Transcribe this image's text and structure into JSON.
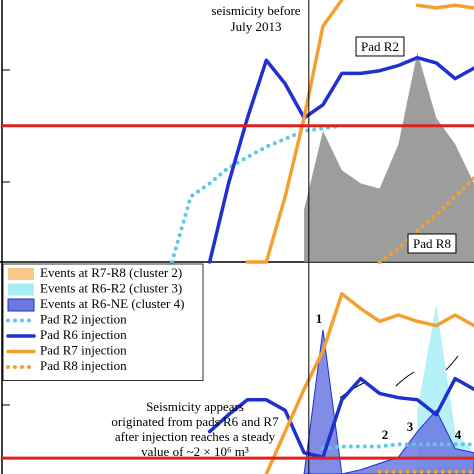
{
  "chart_data": [
    {
      "type": "line",
      "xlim": [
        0,
        100
      ],
      "ylim": [
        0,
        100
      ],
      "vline": 65,
      "hline": 52,
      "hline_color": "#e0201e",
      "annotations": [
        "seismicity before",
        "July 2013",
        "Pad R2",
        "Pad R8"
      ],
      "x": [
        36,
        40,
        44,
        48,
        52,
        56,
        60,
        64,
        68,
        72,
        76,
        80,
        84,
        88,
        92,
        96,
        100
      ],
      "series": [
        {
          "color": "#8c8c8c",
          "fill": true,
          "values": [
            null,
            null,
            null,
            null,
            null,
            null,
            null,
            20,
            50,
            35,
            30,
            28,
            45,
            80,
            55,
            45,
            30
          ]
        },
        {
          "color": "#5ec8e6",
          "style": "dotted",
          "values": [
            0,
            25,
            30,
            36,
            40,
            44,
            47,
            50,
            51,
            52,
            null,
            null,
            null,
            null,
            null,
            null,
            null
          ]
        },
        {
          "color": "#1f2fd0",
          "style": "solid",
          "values": [
            null,
            null,
            0,
            30,
            55,
            77,
            68,
            55,
            60,
            72,
            72,
            73,
            75,
            78,
            76,
            70,
            74
          ]
        },
        {
          "color": "#f4a030",
          "style": "solid",
          "values": [
            null,
            null,
            null,
            null,
            0,
            0,
            25,
            55,
            90,
            100,
            null,
            null,
            null,
            98,
            97,
            98,
            97
          ]
        },
        {
          "color": "#f4a030",
          "style": "dotted",
          "values": [
            null,
            null,
            null,
            null,
            null,
            null,
            null,
            null,
            null,
            null,
            null,
            0,
            5,
            12,
            18,
            25,
            32
          ]
        }
      ]
    },
    {
      "type": "line",
      "xlim": [
        0,
        100
      ],
      "ylim": [
        0,
        100
      ],
      "vline": 65,
      "hline": 7.5,
      "hline_color": "#e0201e",
      "annotations": [
        "Seismicity appears",
        "originated from pads R6 and R7",
        "after injection reaches a steady",
        "value of ~2 × 10⁶ m³",
        "1",
        "2",
        "3",
        "4"
      ],
      "x": [
        44,
        48,
        52,
        56,
        60,
        64,
        68,
        72,
        76,
        80,
        84,
        88,
        92,
        96,
        100
      ],
      "series": [
        {
          "name": "Events at R7-R8 (cluster 2)",
          "color": "#f8c888",
          "fill": true,
          "values": [
            null,
            null,
            null,
            null,
            null,
            null,
            null,
            null,
            null,
            null,
            null,
            2,
            5,
            3,
            2
          ]
        },
        {
          "name": "Events at R6-R2 (cluster 3)",
          "color": "#a8eef6",
          "fill": true,
          "values": [
            null,
            null,
            null,
            null,
            null,
            null,
            null,
            null,
            null,
            null,
            null,
            30,
            80,
            20,
            10
          ]
        },
        {
          "name": "Events at R6-NE (cluster 4)",
          "color": "#6a78e0",
          "fill": true,
          "values": [
            null,
            null,
            null,
            null,
            null,
            0,
            68,
            0,
            2,
            5,
            8,
            20,
            30,
            12,
            10
          ]
        },
        {
          "name": "Pad R2 injection",
          "color": "#5ec8e6",
          "style": "dotted",
          "values": [
            null,
            null,
            null,
            null,
            null,
            null,
            12,
            13,
            13,
            13,
            14,
            14,
            14,
            14,
            14
          ]
        },
        {
          "name": "Pad R6 injection",
          "color": "#1f2fd0",
          "style": "solid",
          "values": [
            20,
            28,
            35,
            35,
            30,
            10,
            8,
            35,
            45,
            38,
            36,
            35,
            28,
            45,
            40
          ]
        },
        {
          "name": "Pad R7 injection",
          "color": "#f4a030",
          "style": "solid",
          "values": [
            null,
            null,
            null,
            0,
            20,
            40,
            58,
            85,
            78,
            72,
            75,
            72,
            70,
            75,
            70
          ]
        },
        {
          "name": "Pad R8 injection",
          "color": "#f4a030",
          "style": "dotted",
          "values": [
            null,
            null,
            null,
            null,
            null,
            null,
            null,
            null,
            null,
            1,
            1,
            1,
            1,
            1,
            1
          ]
        }
      ]
    }
  ]
}
